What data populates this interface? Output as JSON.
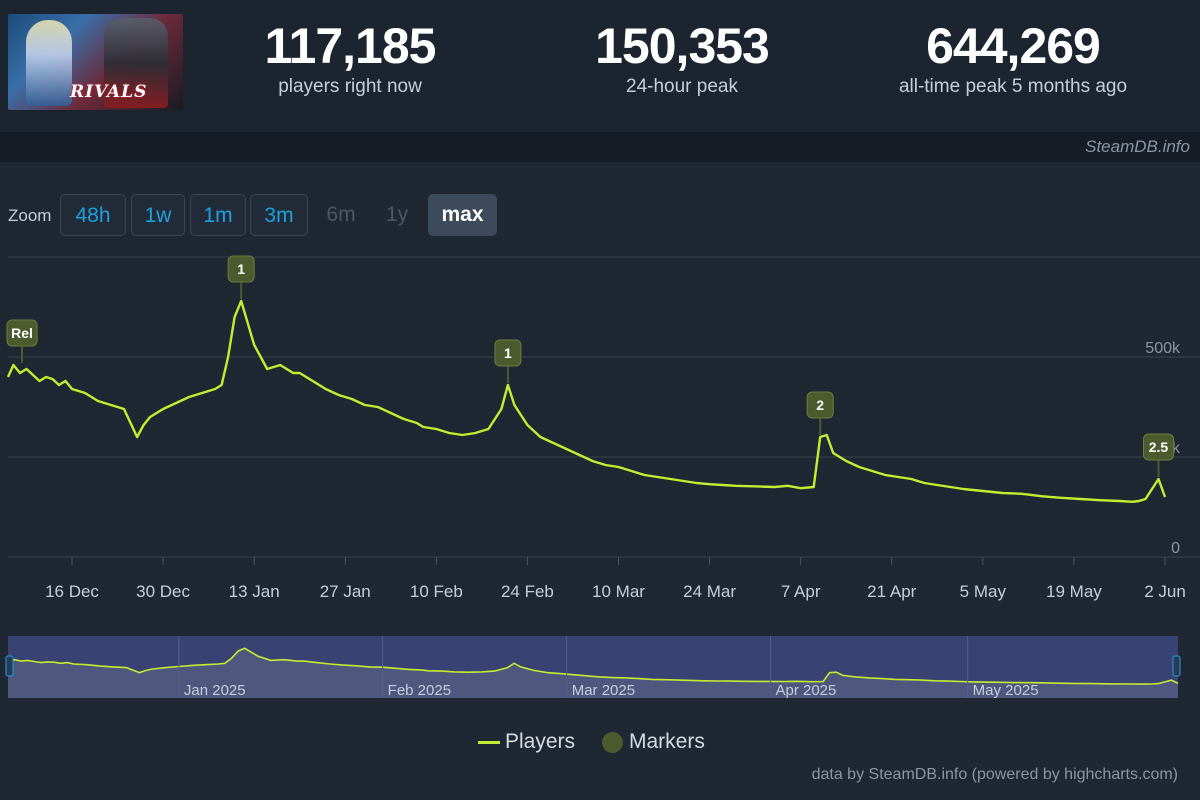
{
  "header": {
    "game_title": "RIVALS",
    "stats": {
      "now_value": "117,185",
      "now_label": "players right now",
      "peak24_value": "150,353",
      "peak24_label": "24-hour peak",
      "alltime_value": "644,269",
      "alltime_label": "all-time peak 5 months ago"
    }
  },
  "credit_top": "SteamDB.info",
  "zoom": {
    "label": "Zoom",
    "buttons": [
      {
        "label": "48h",
        "state": "enabled"
      },
      {
        "label": "1w",
        "state": "enabled"
      },
      {
        "label": "1m",
        "state": "enabled"
      },
      {
        "label": "3m",
        "state": "enabled"
      },
      {
        "label": "6m",
        "state": "disabled"
      },
      {
        "label": "1y",
        "state": "disabled"
      },
      {
        "label": "max",
        "state": "active"
      }
    ]
  },
  "legend": {
    "players": "Players",
    "markers": "Markers"
  },
  "credit_bottom": "data by SteamDB.info (powered by highcharts.com)",
  "colors": {
    "line": "#c6ec31",
    "background": "#1f2733",
    "grid": "#3a4452",
    "marker_fill": "#4c5a2e",
    "navigator_mask": "#3f4a86",
    "zoom_button_text": "#1ea0df"
  },
  "chart_data": {
    "type": "line",
    "series": [
      {
        "name": "Players"
      }
    ],
    "x_start": "2024-12-06",
    "x": [
      "2024-12-06",
      "2024-12-07",
      "2024-12-08",
      "2024-12-09",
      "2024-12-10",
      "2024-12-11",
      "2024-12-12",
      "2024-12-13",
      "2024-12-14",
      "2024-12-15",
      "2024-12-16",
      "2024-12-18",
      "2024-12-20",
      "2024-12-22",
      "2024-12-24",
      "2024-12-26",
      "2024-12-27",
      "2024-12-28",
      "2024-12-30",
      "2025-01-01",
      "2025-01-03",
      "2025-01-05",
      "2025-01-07",
      "2025-01-08",
      "2025-01-09",
      "2025-01-10",
      "2025-01-11",
      "2025-01-13",
      "2025-01-15",
      "2025-01-17",
      "2025-01-19",
      "2025-01-20",
      "2025-01-22",
      "2025-01-24",
      "2025-01-26",
      "2025-01-28",
      "2025-01-30",
      "2025-02-01",
      "2025-02-03",
      "2025-02-05",
      "2025-02-07",
      "2025-02-08",
      "2025-02-10",
      "2025-02-12",
      "2025-02-14",
      "2025-02-16",
      "2025-02-18",
      "2025-02-20",
      "2025-02-21",
      "2025-02-22",
      "2025-02-24",
      "2025-02-26",
      "2025-02-28",
      "2025-03-02",
      "2025-03-04",
      "2025-03-06",
      "2025-03-08",
      "2025-03-10",
      "2025-03-12",
      "2025-03-14",
      "2025-03-16",
      "2025-03-18",
      "2025-03-20",
      "2025-03-22",
      "2025-03-24",
      "2025-03-26",
      "2025-03-28",
      "2025-03-30",
      "2025-04-01",
      "2025-04-03",
      "2025-04-05",
      "2025-04-07",
      "2025-04-09",
      "2025-04-10",
      "2025-04-11",
      "2025-04-12",
      "2025-04-14",
      "2025-04-16",
      "2025-04-18",
      "2025-04-20",
      "2025-04-22",
      "2025-04-24",
      "2025-04-26",
      "2025-04-28",
      "2025-04-30",
      "2025-05-02",
      "2025-05-05",
      "2025-05-08",
      "2025-05-11",
      "2025-05-14",
      "2025-05-17",
      "2025-05-20",
      "2025-05-23",
      "2025-05-26",
      "2025-05-28",
      "2025-05-29",
      "2025-05-30",
      "2025-05-31",
      "2025-06-01",
      "2025-06-02"
    ],
    "values": [
      450000,
      480000,
      460000,
      470000,
      455000,
      440000,
      450000,
      445000,
      430000,
      440000,
      420000,
      410000,
      390000,
      380000,
      370000,
      300000,
      330000,
      350000,
      370000,
      385000,
      400000,
      410000,
      420000,
      430000,
      500000,
      600000,
      640000,
      530000,
      470000,
      480000,
      460000,
      460000,
      440000,
      420000,
      405000,
      395000,
      380000,
      375000,
      360000,
      345000,
      335000,
      325000,
      320000,
      310000,
      305000,
      310000,
      320000,
      370000,
      430000,
      380000,
      330000,
      300000,
      285000,
      270000,
      255000,
      240000,
      230000,
      225000,
      215000,
      205000,
      200000,
      195000,
      190000,
      185000,
      182000,
      180000,
      178000,
      177000,
      176000,
      175000,
      178000,
      172000,
      175000,
      300000,
      305000,
      260000,
      240000,
      225000,
      215000,
      205000,
      200000,
      195000,
      185000,
      180000,
      175000,
      170000,
      165000,
      160000,
      158000,
      152000,
      148000,
      145000,
      142000,
      140000,
      138000,
      140000,
      145000,
      170000,
      195000,
      150000
    ],
    "markers": [
      {
        "label": "Rel",
        "date": "2024-12-07"
      },
      {
        "label": "1",
        "date": "2025-01-11"
      },
      {
        "label": "1",
        "date": "2025-02-21"
      },
      {
        "label": "2",
        "date": "2025-04-10"
      },
      {
        "label": "2.5",
        "date": "2025-06-01"
      }
    ],
    "x_tick_labels": [
      "16 Dec",
      "30 Dec",
      "13 Jan",
      "27 Jan",
      "10 Feb",
      "24 Feb",
      "10 Mar",
      "24 Mar",
      "7 Apr",
      "21 Apr",
      "5 May",
      "19 May",
      "2 Jun"
    ],
    "y_tick_labels": [
      "0",
      "250k",
      "500k"
    ],
    "ylim": [
      0,
      700000
    ],
    "navigator_labels": [
      "Jan 2025",
      "Feb 2025",
      "Mar 2025",
      "Apr 2025",
      "May 2025"
    ],
    "legend": [
      "Players",
      "Markers"
    ],
    "legend_position": "bottom-center",
    "grid": true
  }
}
